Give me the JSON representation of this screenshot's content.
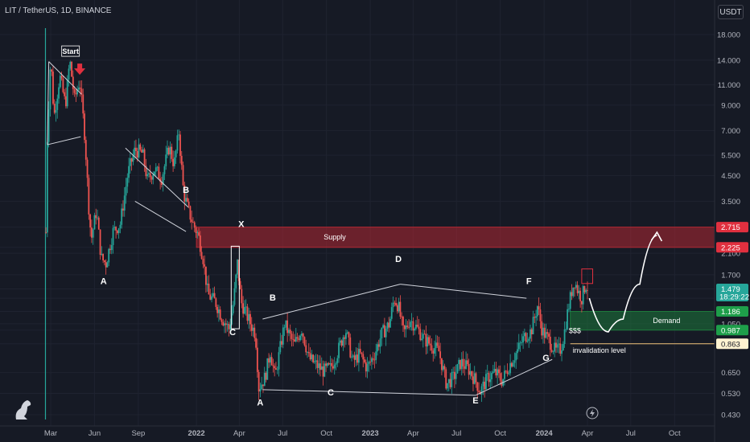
{
  "header": {
    "symbol_title": "LIT / TetherUS, 1D, BINANCE",
    "currency_button": "USDT"
  },
  "chart_data": {
    "type": "candlestick",
    "title": "LIT / TetherUS, 1D, BINANCE",
    "y_scale": "log",
    "ylim": [
      0.4,
      22.0
    ],
    "y_ticks": [
      "18.000",
      "14.000",
      "11.000",
      "9.000",
      "7.000",
      "5.500",
      "4.500",
      "3.500",
      "2.715",
      "2.225",
      "2.100",
      "1.700",
      "1.479",
      "1.350",
      "1.186",
      "1.050",
      "0.987",
      "0.863",
      "0.650",
      "0.530",
      "0.430"
    ],
    "x_ticks": [
      "Mar",
      "Jun",
      "Sep",
      "2022",
      "Apr",
      "Jul",
      "Oct",
      "2023",
      "Apr",
      "Jul",
      "Oct",
      "2024",
      "Apr",
      "Jul",
      "Oct"
    ],
    "price_path": [
      [
        "2021-02-15",
        0.75
      ],
      [
        "2021-02-22",
        6.5
      ],
      [
        "2021-03-01",
        14.5
      ],
      [
        "2021-03-08",
        8.0
      ],
      [
        "2021-03-20",
        12.0
      ],
      [
        "2021-04-01",
        9.0
      ],
      [
        "2021-04-10",
        14.0
      ],
      [
        "2021-04-20",
        9.5
      ],
      [
        "2021-05-01",
        11.5
      ],
      [
        "2021-05-12",
        6.5
      ],
      [
        "2021-05-20",
        3.3
      ],
      [
        "2021-05-25",
        2.4
      ],
      [
        "2021-06-05",
        3.2
      ],
      [
        "2021-06-15",
        2.0
      ],
      [
        "2021-06-25",
        1.9
      ],
      [
        "2021-07-10",
        2.6
      ],
      [
        "2021-07-25",
        2.8
      ],
      [
        "2021-08-10",
        4.6
      ],
      [
        "2021-08-25",
        5.8
      ],
      [
        "2021-09-10",
        5.6
      ],
      [
        "2021-09-20",
        4.3
      ],
      [
        "2021-10-05",
        4.8
      ],
      [
        "2021-10-20",
        4.4
      ],
      [
        "2021-11-05",
        6.0
      ],
      [
        "2021-11-15",
        5.0
      ],
      [
        "2021-11-25",
        6.9
      ],
      [
        "2021-12-05",
        3.8
      ],
      [
        "2021-12-15",
        3.2
      ],
      [
        "2021-12-25",
        2.8
      ],
      [
        "2022-01-05",
        2.5
      ],
      [
        "2022-01-15",
        2.0
      ],
      [
        "2022-01-25",
        1.4
      ],
      [
        "2022-02-10",
        1.3
      ],
      [
        "2022-02-25",
        1.1
      ],
      [
        "2022-03-10",
        1.0
      ],
      [
        "2022-03-20",
        1.3
      ],
      [
        "2022-03-28",
        1.9
      ],
      [
        "2022-04-05",
        1.3
      ],
      [
        "2022-04-20",
        1.1
      ],
      [
        "2022-05-05",
        0.95
      ],
      [
        "2022-05-12",
        0.56
      ],
      [
        "2022-05-25",
        0.62
      ],
      [
        "2022-06-05",
        0.8
      ],
      [
        "2022-06-15",
        0.62
      ],
      [
        "2022-07-05",
        1.05
      ],
      [
        "2022-07-25",
        0.85
      ],
      [
        "2022-08-10",
        1.0
      ],
      [
        "2022-08-25",
        0.75
      ],
      [
        "2022-09-10",
        0.7
      ],
      [
        "2022-09-25",
        0.66
      ],
      [
        "2022-10-10",
        0.68
      ],
      [
        "2022-10-25",
        0.8
      ],
      [
        "2022-11-10",
        1.0
      ],
      [
        "2022-11-25",
        0.72
      ],
      [
        "2022-12-10",
        0.78
      ],
      [
        "2022-12-25",
        0.68
      ],
      [
        "2023-01-10",
        0.78
      ],
      [
        "2023-01-25",
        0.95
      ],
      [
        "2023-02-10",
        1.05
      ],
      [
        "2023-02-20",
        1.35
      ],
      [
        "2023-03-01",
        1.25
      ],
      [
        "2023-03-12",
        0.95
      ],
      [
        "2023-03-25",
        1.1
      ],
      [
        "2023-04-10",
        1.0
      ],
      [
        "2023-04-25",
        0.9
      ],
      [
        "2023-05-10",
        0.85
      ],
      [
        "2023-05-25",
        0.8
      ],
      [
        "2023-06-10",
        0.58
      ],
      [
        "2023-06-25",
        0.62
      ],
      [
        "2023-07-10",
        0.72
      ],
      [
        "2023-07-25",
        0.68
      ],
      [
        "2023-08-10",
        0.6
      ],
      [
        "2023-08-20",
        0.54
      ],
      [
        "2023-09-05",
        0.62
      ],
      [
        "2023-09-20",
        0.65
      ],
      [
        "2023-10-05",
        0.6
      ],
      [
        "2023-10-20",
        0.7
      ],
      [
        "2023-11-05",
        0.8
      ],
      [
        "2023-11-20",
        0.92
      ],
      [
        "2023-12-05",
        0.98
      ],
      [
        "2023-12-18",
        1.25
      ],
      [
        "2023-12-28",
        0.98
      ],
      [
        "2024-01-10",
        0.9
      ],
      [
        "2024-01-25",
        0.8
      ],
      [
        "2024-02-05",
        0.82
      ],
      [
        "2024-02-12",
        0.95
      ],
      [
        "2024-02-20",
        1.2
      ],
      [
        "2024-02-28",
        1.45
      ],
      [
        "2024-03-05",
        1.6
      ],
      [
        "2024-03-12",
        1.45
      ],
      [
        "2024-03-20",
        1.35
      ],
      [
        "2024-03-28",
        1.55
      ],
      [
        "2024-04-03",
        1.48
      ]
    ],
    "volume_spike": {
      "date": "2021-02-18",
      "color": "#26a69a"
    },
    "zones": [
      {
        "name": "Supply",
        "low": 2.225,
        "high": 2.715,
        "from": "2022-01-01",
        "color": "#b22833"
      },
      {
        "name": "Demand",
        "low": 0.987,
        "high": 1.186,
        "from": "2024-02-25",
        "color": "#1e7a3c"
      }
    ],
    "levels": [
      {
        "name": "invalidation level",
        "value": 0.863,
        "from": "2024-02-25",
        "color": "#f0c27a"
      }
    ],
    "price_tags": [
      {
        "text": "2.715",
        "value": 2.715,
        "bg": "#e0303f",
        "fg": "#ffffff"
      },
      {
        "text": "2.225",
        "value": 2.225,
        "bg": "#e0303f",
        "fg": "#ffffff"
      },
      {
        "text": "1.479",
        "value": 1.479,
        "bg": "#26a69a",
        "fg": "#ffffff",
        "sub": "18:29:22"
      },
      {
        "text": "1.186",
        "value": 1.186,
        "bg": "#1e9e4a",
        "fg": "#ffffff"
      },
      {
        "text": "0.987",
        "value": 0.987,
        "bg": "#1e9e4a",
        "fg": "#ffffff"
      },
      {
        "text": "0.863",
        "value": 0.863,
        "bg": "#fff3d1",
        "fg": "#161a25"
      }
    ],
    "wave_labels": [
      {
        "text": "A",
        "date": "2021-06-20",
        "price": 1.55
      },
      {
        "text": "B",
        "date": "2021-12-10",
        "price": 3.8
      },
      {
        "text": "X",
        "date": "2022-04-05",
        "price": 2.72
      },
      {
        "text": "C",
        "date": "2022-03-18",
        "price": 0.94
      },
      {
        "text": "A",
        "date": "2022-05-15",
        "price": 0.47
      },
      {
        "text": "B",
        "date": "2022-06-10",
        "price": 1.32
      },
      {
        "text": "C",
        "date": "2022-10-10",
        "price": 0.52
      },
      {
        "text": "D",
        "date": "2023-03-01",
        "price": 1.93
      },
      {
        "text": "F",
        "date": "2023-11-30",
        "price": 1.55
      },
      {
        "text": "E",
        "date": "2023-08-10",
        "price": 0.48
      },
      {
        "text": "G",
        "date": "2024-01-05",
        "price": 0.73
      }
    ],
    "trendlines": [
      [
        "2021-02-25",
        13.8,
        "2021-05-05",
        10.0
      ],
      [
        "2021-02-22",
        6.1,
        "2021-05-03",
        6.6
      ],
      [
        "2021-08-05",
        5.9,
        "2021-12-15",
        3.3
      ],
      [
        "2021-08-25",
        3.5,
        "2021-12-10",
        2.6
      ],
      [
        "2022-05-20",
        1.1,
        "2023-03-05",
        1.55
      ],
      [
        "2023-03-05",
        1.55,
        "2023-11-25",
        1.35
      ],
      [
        "2022-05-20",
        0.55,
        "2023-08-10",
        0.52
      ],
      [
        "2023-08-10",
        0.52,
        "2024-01-18",
        0.74
      ]
    ],
    "boxes": [
      {
        "from": "2022-03-15",
        "to": "2022-04-01",
        "low": 1.0,
        "high": 2.25,
        "color": "#ffffff"
      },
      {
        "from": "2024-03-20",
        "to": "2024-04-12",
        "low": 1.56,
        "high": 1.8,
        "color": "#e0303f"
      }
    ],
    "markers": [
      {
        "type": "down-arrow",
        "date": "2021-05-01",
        "price": 12.5,
        "color": "#e0303f"
      }
    ],
    "notes": [
      {
        "text": "Start",
        "date": "2021-04-10",
        "price": 15.0
      },
      {
        "text": "$$$",
        "date": "2024-02-22",
        "price": 0.96
      }
    ],
    "projection": [
      [
        "2024-04-05",
        1.35
      ],
      [
        "2024-05-15",
        0.97
      ],
      [
        "2024-06-15",
        1.1
      ],
      [
        "2024-07-20",
        1.55
      ],
      [
        "2024-08-25",
        2.5
      ]
    ]
  }
}
